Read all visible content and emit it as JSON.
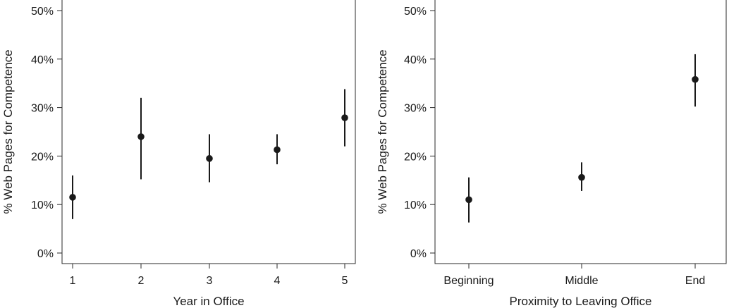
{
  "chart_data": [
    {
      "type": "scatter",
      "xlabel": "Year in Office",
      "ylabel": "% Web Pages for Competence",
      "categories": [
        "1",
        "2",
        "3",
        "4",
        "5"
      ],
      "values": [
        11.5,
        24,
        19.5,
        21.3,
        27.9
      ],
      "ci_low": [
        7,
        15.2,
        14.6,
        18.3,
        22
      ],
      "ci_high": [
        16,
        32,
        24.5,
        24.5,
        33.8
      ],
      "ylim": [
        0,
        50
      ],
      "yticks": [
        0,
        10,
        20,
        30,
        40,
        50
      ],
      "ytick_labels": [
        "0%",
        "10%",
        "20%",
        "30%",
        "40%",
        "50%"
      ],
      "grid": false,
      "legend": "none",
      "color": "#1a1a1a"
    },
    {
      "type": "scatter",
      "xlabel": "Proximity to Leaving Office",
      "ylabel": "% Web Pages for Competence",
      "categories": [
        "Beginning",
        "Middle",
        "End"
      ],
      "values": [
        11,
        15.6,
        35.8
      ],
      "ci_low": [
        6.3,
        12.8,
        30.2
      ],
      "ci_high": [
        15.6,
        18.7,
        41
      ],
      "ylim": [
        0,
        50
      ],
      "yticks": [
        0,
        10,
        20,
        30,
        40,
        50
      ],
      "ytick_labels": [
        "0%",
        "10%",
        "20%",
        "30%",
        "40%",
        "50%"
      ],
      "grid": false,
      "legend": "none",
      "color": "#1a1a1a"
    }
  ]
}
